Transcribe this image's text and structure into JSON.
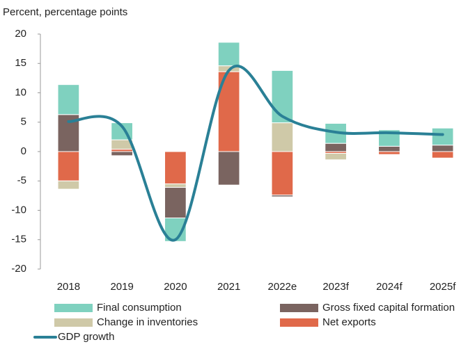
{
  "chart_data": {
    "type": "bar",
    "title": "Percent, percentage points",
    "categories": [
      "2018",
      "2019",
      "2020",
      "2021",
      "2022e",
      "2023f",
      "2024f",
      "2025f"
    ],
    "series": [
      {
        "name": "Final consumption",
        "color": "#7fd1bf",
        "values": [
          5.1,
          2.9,
          -4.0,
          4.0,
          8.9,
          3.4,
          2.8,
          2.9
        ]
      },
      {
        "name": "Gross fixed capital formation",
        "color": "#7a6460",
        "values": [
          6.3,
          -0.7,
          -5.2,
          -5.7,
          -0.3,
          1.4,
          0.9,
          1.1
        ]
      },
      {
        "name": "Change in inventories",
        "color": "#cfc9a8",
        "values": [
          -1.4,
          1.6,
          -0.6,
          1.0,
          4.9,
          -1.1,
          0,
          0
        ]
      },
      {
        "name": "Net exports",
        "color": "#e0694a",
        "values": [
          -5.0,
          0.4,
          -5.5,
          13.6,
          -7.4,
          -0.3,
          -0.5,
          -1.1
        ]
      }
    ],
    "line_series": {
      "name": "GDP growth",
      "color": "#2a8096",
      "values": [
        5.1,
        4.3,
        -15.0,
        13.8,
        6.0,
        3.3,
        3.2,
        2.9
      ]
    },
    "ylim": [
      -20,
      20
    ],
    "yticks": [
      -20,
      -15,
      -10,
      -5,
      0,
      5,
      10,
      15,
      20
    ]
  }
}
